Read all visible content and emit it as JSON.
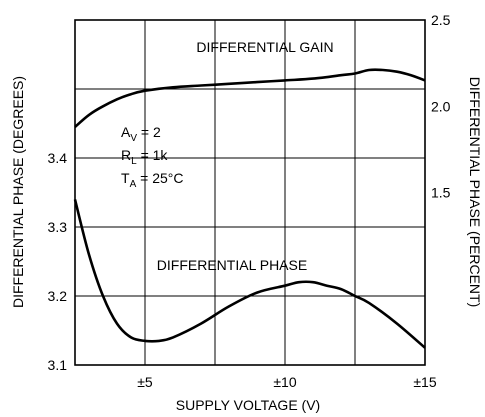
{
  "chart_data": {
    "type": "line",
    "xlabel": "SUPPLY VOLTAGE (V)",
    "ylabel_left": "DIFFERENTIAL PHASE (DEGREES)",
    "ylabel_right": "DIFFERENTIAL PHASE (PERCENT)",
    "x_ticks": [
      "±5",
      "±10",
      "±15"
    ],
    "x_tick_values": [
      5,
      10,
      15
    ],
    "xlim": [
      2.5,
      15
    ],
    "left_ticks": [
      "3.1",
      "3.2",
      "3.3",
      "3.4"
    ],
    "left_tick_values": [
      3.1,
      3.2,
      3.3,
      3.4
    ],
    "ylim_left": [
      3.1,
      3.6
    ],
    "right_ticks": [
      "2.5",
      "2.0",
      "1.5"
    ],
    "right_tick_values": [
      2.5,
      2.0,
      1.5
    ],
    "ylim_right": [
      0.5,
      2.5
    ],
    "grid": true,
    "series": [
      {
        "name": "DIFFERENTIAL GAIN",
        "axis": "right",
        "x": [
          2.5,
          3.0,
          3.5,
          4.0,
          4.5,
          5.0,
          6.0,
          7.0,
          8.0,
          9.0,
          10.0,
          11.0,
          12.0,
          12.5,
          13.0,
          13.5,
          14.0,
          14.5,
          15.0
        ],
        "y": [
          1.88,
          1.95,
          2.0,
          2.04,
          2.07,
          2.09,
          2.11,
          2.12,
          2.13,
          2.14,
          2.15,
          2.16,
          2.18,
          2.19,
          2.21,
          2.21,
          2.2,
          2.18,
          2.15
        ]
      },
      {
        "name": "DIFFERENTIAL PHASE",
        "axis": "left",
        "x": [
          2.5,
          3.0,
          3.5,
          4.0,
          4.5,
          5.0,
          5.5,
          6.0,
          7.0,
          8.0,
          9.0,
          10.0,
          10.5,
          11.0,
          11.5,
          12.0,
          12.5,
          13.0,
          14.0,
          15.0
        ],
        "y": [
          3.34,
          3.26,
          3.2,
          3.16,
          3.14,
          3.135,
          3.135,
          3.14,
          3.16,
          3.185,
          3.205,
          3.215,
          3.22,
          3.22,
          3.215,
          3.21,
          3.2,
          3.19,
          3.16,
          3.125
        ]
      }
    ]
  },
  "annotations": {
    "gain_label": "DIFFERENTIAL GAIN",
    "phase_label": "DIFFERENTIAL PHASE",
    "av": {
      "main": "A",
      "sub": "V",
      "rest": " = 2"
    },
    "rl": {
      "main": "R",
      "sub": "L",
      "rest": " = 1k"
    },
    "ta": {
      "main": "T",
      "sub": "A",
      "rest": " = 25°C"
    }
  }
}
